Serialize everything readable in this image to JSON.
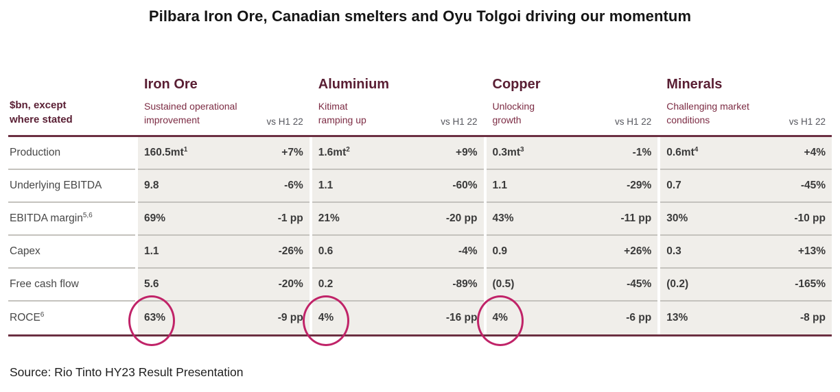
{
  "title": "Pilbara Iron Ore, Canadian smelters and Oyu Tolgoi driving our momentum",
  "source": "Source: Rio Tinto HY23 Result Presentation",
  "table": {
    "unit_label": "$bn, except\nwhere stated",
    "vs_header": "vs H1 22",
    "sections": [
      {
        "name": "Iron Ore",
        "subtitle": "Sustained operational\nimprovement"
      },
      {
        "name": "Aluminium",
        "subtitle": "Kitimat\nramping up"
      },
      {
        "name": "Copper",
        "subtitle": "Unlocking\ngrowth"
      },
      {
        "name": "Minerals",
        "subtitle": "Challenging market\nconditions"
      }
    ],
    "rows": [
      {
        "label": "Production",
        "sup": "",
        "cells": [
          {
            "value": "160.5mt",
            "sup": "1",
            "vs": "+7%",
            "circled": false
          },
          {
            "value": "1.6mt",
            "sup": "2",
            "vs": "+9%",
            "circled": false
          },
          {
            "value": "0.3mt",
            "sup": "3",
            "vs": "-1%",
            "circled": false
          },
          {
            "value": "0.6mt",
            "sup": "4",
            "vs": "+4%",
            "circled": false
          }
        ]
      },
      {
        "label": "Underlying EBITDA",
        "sup": "",
        "cells": [
          {
            "value": "9.8",
            "sup": "",
            "vs": "-6%",
            "circled": false
          },
          {
            "value": "1.1",
            "sup": "",
            "vs": "-60%",
            "circled": false
          },
          {
            "value": "1.1",
            "sup": "",
            "vs": "-29%",
            "circled": false
          },
          {
            "value": "0.7",
            "sup": "",
            "vs": "-45%",
            "circled": false
          }
        ]
      },
      {
        "label": "EBITDA margin",
        "sup": "5,6",
        "cells": [
          {
            "value": "69%",
            "sup": "",
            "vs": "-1 pp",
            "circled": false
          },
          {
            "value": "21%",
            "sup": "",
            "vs": "-20 pp",
            "circled": false
          },
          {
            "value": "43%",
            "sup": "",
            "vs": "-11 pp",
            "circled": false
          },
          {
            "value": "30%",
            "sup": "",
            "vs": "-10 pp",
            "circled": false
          }
        ]
      },
      {
        "label": "Capex",
        "sup": "",
        "cells": [
          {
            "value": "1.1",
            "sup": "",
            "vs": "-26%",
            "circled": false
          },
          {
            "value": "0.6",
            "sup": "",
            "vs": "-4%",
            "circled": false
          },
          {
            "value": "0.9",
            "sup": "",
            "vs": "+26%",
            "circled": false
          },
          {
            "value": "0.3",
            "sup": "",
            "vs": "+13%",
            "circled": false
          }
        ]
      },
      {
        "label": "Free cash flow",
        "sup": "",
        "cells": [
          {
            "value": "5.6",
            "sup": "",
            "vs": "-20%",
            "circled": false
          },
          {
            "value": "0.2",
            "sup": "",
            "vs": "-89%",
            "circled": false
          },
          {
            "value": "(0.5)",
            "sup": "",
            "vs": "-45%",
            "circled": false
          },
          {
            "value": "(0.2)",
            "sup": "",
            "vs": "-165%",
            "circled": false
          }
        ]
      },
      {
        "label": "ROCE",
        "sup": "6",
        "cells": [
          {
            "value": "63%",
            "sup": "",
            "vs": "-9 pp",
            "circled": true
          },
          {
            "value": "4%",
            "sup": "",
            "vs": "-16 pp",
            "circled": true
          },
          {
            "value": "4%",
            "sup": "",
            "vs": "-6 pp",
            "circled": true
          },
          {
            "value": "13%",
            "sup": "",
            "vs": "-8 pp",
            "circled": false
          }
        ]
      }
    ]
  },
  "colors": {
    "maroon_dark": "#591e33",
    "maroon_subtitle": "#7c2b43",
    "rule_maroon": "#6b2f41",
    "vs_gray": "#54555c",
    "cell_bg": "#f0eeea",
    "separator": "#c4c2bd",
    "circle_pink": "#c02368",
    "text_dark": "#3a3a3a"
  }
}
